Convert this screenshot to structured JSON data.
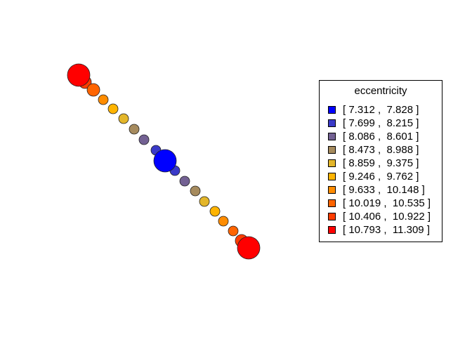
{
  "legend": {
    "title": "eccentricity",
    "items": [
      {
        "label": "[ 7.312 ,  7.828 ]",
        "color": "#0000FF"
      },
      {
        "label": "[ 7.699 ,  8.215 ]",
        "color": "#3A3AC8"
      },
      {
        "label": "[ 8.086 ,  8.601 ]",
        "color": "#736193"
      },
      {
        "label": "[ 8.473 ,  8.988 ]",
        "color": "#A68B5E"
      },
      {
        "label": "[ 8.859 ,  9.375 ]",
        "color": "#E3B62A"
      },
      {
        "label": "[ 9.246 ,  9.762 ]",
        "color": "#FFB400"
      },
      {
        "label": "[ 9.633 ,  10.148 ]",
        "color": "#FF8C00"
      },
      {
        "label": "[ 10.019 ,  10.535 ]",
        "color": "#FF6400"
      },
      {
        "label": "[ 10.406 ,  10.922 ]",
        "color": "#FF3C00"
      },
      {
        "label": "[ 10.793 ,  11.309 ]",
        "color": "#FF0000"
      }
    ]
  },
  "nodes": [
    {
      "bin": 9,
      "size": "large"
    },
    {
      "bin": 8,
      "size": "medium"
    },
    {
      "bin": 7,
      "size": "medium"
    },
    {
      "bin": 6,
      "size": "small"
    },
    {
      "bin": 5,
      "size": "small"
    },
    {
      "bin": 4,
      "size": "small"
    },
    {
      "bin": 3,
      "size": "small"
    },
    {
      "bin": 2,
      "size": "small"
    },
    {
      "bin": 1,
      "size": "small"
    },
    {
      "bin": 0,
      "size": "large"
    },
    {
      "bin": 1,
      "size": "small"
    },
    {
      "bin": 2,
      "size": "small"
    },
    {
      "bin": 3,
      "size": "small"
    },
    {
      "bin": 4,
      "size": "small"
    },
    {
      "bin": 5,
      "size": "small"
    },
    {
      "bin": 6,
      "size": "small"
    },
    {
      "bin": 7,
      "size": "small"
    },
    {
      "bin": 8,
      "size": "medium"
    },
    {
      "bin": 9,
      "size": "large"
    }
  ]
}
